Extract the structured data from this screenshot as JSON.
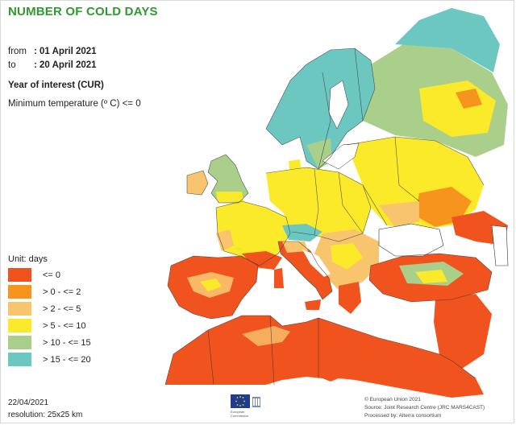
{
  "title": "NUMBER OF COLD DAYS",
  "period": {
    "from_label": "from",
    "from_value": ": 01 April 2021",
    "to_label": "to",
    "to_value": ": 20 April 2021"
  },
  "year_of_interest": "Year of interest (CUR)",
  "criterion": "Minimum temperature (º C) <= 0",
  "legend": {
    "unit": "Unit: days",
    "items": [
      {
        "label": "<= 0",
        "color": "#f0531e"
      },
      {
        "label": "> 0 - <= 2",
        "color": "#f7941d"
      },
      {
        "label": "> 2 - <= 5",
        "color": "#f9c46e"
      },
      {
        "label": "> 5 - <= 10",
        "color": "#fbea2a"
      },
      {
        "label": "> 10 - <= 15",
        "color": "#a9cf8a"
      },
      {
        "label": "> 15 - <= 20",
        "color": "#6cc7c0"
      }
    ]
  },
  "footer": {
    "date": "22/04/2021",
    "resolution": "resolution:  25x25 km",
    "logo_text": "European Commission",
    "credits": [
      "© European Union 2021",
      "Source: Joint Research Centre (JRC MARS4CAST)",
      "Processed by: Alterra consortium"
    ]
  },
  "colors": {
    "sea": "#ffffff",
    "border": "#333333",
    "title": "#2f9a2f"
  }
}
